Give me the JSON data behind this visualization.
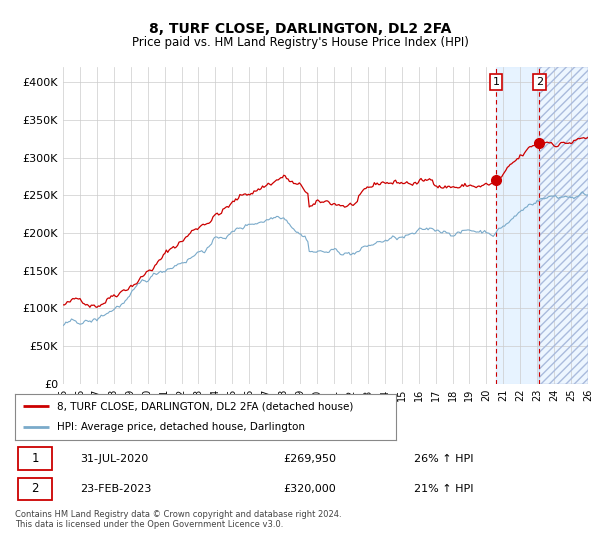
{
  "title": "8, TURF CLOSE, DARLINGTON, DL2 2FA",
  "subtitle": "Price paid vs. HM Land Registry's House Price Index (HPI)",
  "ylabel_ticks": [
    "£0",
    "£50K",
    "£100K",
    "£150K",
    "£200K",
    "£250K",
    "£300K",
    "£350K",
    "£400K"
  ],
  "ytick_values": [
    0,
    50000,
    100000,
    150000,
    200000,
    250000,
    300000,
    350000,
    400000
  ],
  "ylim": [
    0,
    420000
  ],
  "xlim_start": 1995,
  "xlim_end": 2026,
  "xticks": [
    1995,
    1996,
    1997,
    1998,
    1999,
    2000,
    2001,
    2002,
    2003,
    2004,
    2005,
    2006,
    2007,
    2008,
    2009,
    2010,
    2011,
    2012,
    2013,
    2014,
    2015,
    2016,
    2017,
    2018,
    2019,
    2020,
    2021,
    2022,
    2023,
    2024,
    2025,
    2026
  ],
  "red_line_color": "#cc0000",
  "blue_line_color": "#7aaaca",
  "marker1_date": 2020.58,
  "marker2_date": 2023.12,
  "marker1_price": 269950,
  "marker2_price": 320000,
  "legend_line1": "8, TURF CLOSE, DARLINGTON, DL2 2FA (detached house)",
  "legend_line2": "HPI: Average price, detached house, Darlington",
  "info1_num": "1",
  "info1_date": "31-JUL-2020",
  "info1_price": "£269,950",
  "info1_hpi": "26% ↑ HPI",
  "info2_num": "2",
  "info2_date": "23-FEB-2023",
  "info2_price": "£320,000",
  "info2_hpi": "21% ↑ HPI",
  "footer": "Contains HM Land Registry data © Crown copyright and database right 2024.\nThis data is licensed under the Open Government Licence v3.0.",
  "background_color": "#ffffff",
  "grid_color": "#cccccc"
}
